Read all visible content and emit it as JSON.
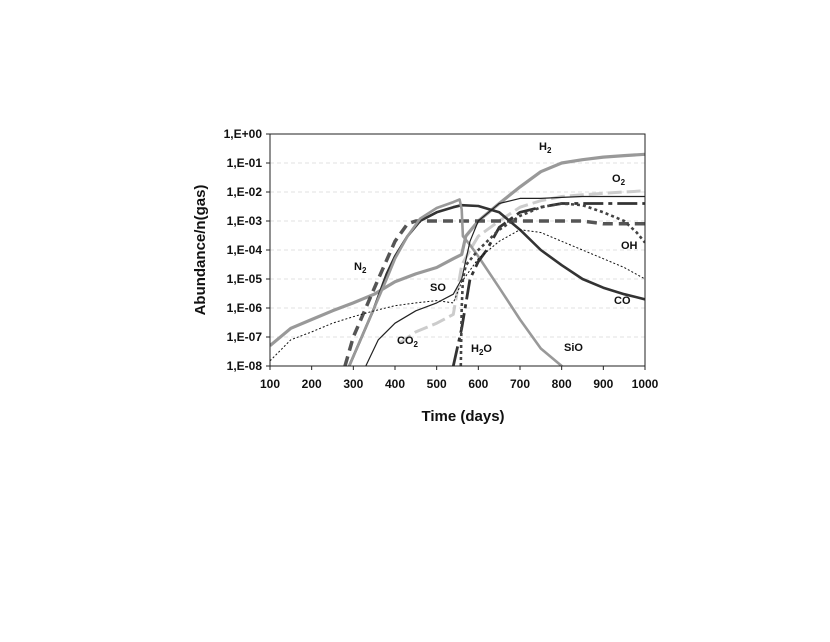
{
  "chart_data": {
    "type": "line",
    "xlabel": "Time (days)",
    "ylabel": "Abundance/n(gas)",
    "xlim": [
      100,
      1000
    ],
    "ylim_log10": [
      -8,
      0
    ],
    "y_scale": "log",
    "x_ticks": [
      "100",
      "200",
      "300",
      "400",
      "500",
      "600",
      "700",
      "800",
      "900",
      "1000"
    ],
    "y_ticks": [
      "1,E-08",
      "1,E-07",
      "1,E-06",
      "1,E-05",
      "1,E-04",
      "1,E-03",
      "1,E-02",
      "1,E-01",
      "1,E+00"
    ],
    "legend": "none (inline labels)",
    "grid": "horizontal dashed",
    "series": [
      {
        "name": "H2",
        "label_base": "H",
        "label_sub": "2",
        "color": "#999999",
        "dash": "",
        "width": 3.2,
        "x": [
          100,
          150,
          200,
          250,
          300,
          350,
          400,
          450,
          500,
          540,
          560,
          570,
          600,
          650,
          700,
          750,
          800,
          850,
          900,
          950,
          1000
        ],
        "y": [
          5e-08,
          2e-07,
          4e-07,
          8e-07,
          1.5e-06,
          3e-06,
          8e-06,
          1.5e-05,
          2.5e-05,
          5e-05,
          7e-05,
          0.0003,
          0.001,
          0.004,
          0.015,
          0.05,
          0.1,
          0.13,
          0.16,
          0.18,
          0.2
        ]
      },
      {
        "name": "O2",
        "label_base": "O",
        "label_sub": "2",
        "color": "#cccccc",
        "dash": "14,5",
        "width": 3,
        "x": [
          410,
          450,
          500,
          540,
          560,
          580,
          600,
          650,
          700,
          750,
          800,
          850,
          900,
          950,
          1000
        ],
        "y": [
          6e-08,
          1.5e-07,
          3e-07,
          6e-07,
          3e-05,
          0.0001,
          0.0003,
          0.001,
          0.003,
          0.005,
          0.007,
          0.008,
          0.009,
          0.01,
          0.011
        ]
      },
      {
        "name": "N2",
        "label_base": "N",
        "label_sub": "2",
        "color": "#555555",
        "dash": "10,6",
        "width": 3.5,
        "x": [
          280,
          300,
          330,
          360,
          400,
          430,
          450,
          500,
          550,
          600,
          650,
          700,
          750,
          800,
          850,
          900,
          950,
          1000
        ],
        "y": [
          1e-08,
          1e-07,
          1e-06,
          1e-05,
          0.0002,
          0.0008,
          0.001,
          0.001,
          0.001,
          0.001,
          0.001,
          0.001,
          0.001,
          0.001,
          0.001,
          0.0008,
          0.0008,
          0.0008
        ]
      },
      {
        "name": "CO",
        "label_base": "CO",
        "label_sub": "",
        "color": "#333333",
        "dash": "",
        "width": 2.6,
        "x": [
          290,
          320,
          350,
          380,
          400,
          430,
          460,
          500,
          540,
          560,
          600,
          650,
          700,
          750,
          800,
          850,
          900,
          950,
          1000
        ],
        "y": [
          1e-08,
          1e-07,
          1e-06,
          1.5e-05,
          6e-05,
          0.0003,
          0.001,
          0.002,
          0.003,
          0.0035,
          0.0033,
          0.002,
          0.0005,
          0.0001,
          3e-05,
          1e-05,
          5e-06,
          3e-06,
          2e-06
        ]
      },
      {
        "name": "SiO",
        "label_base": "SiO",
        "label_sub": "",
        "color": "#999999",
        "dash": "",
        "width": 2.6,
        "x": [
          290,
          320,
          350,
          380,
          400,
          430,
          460,
          500,
          540,
          555,
          560,
          563,
          580,
          600,
          650,
          700,
          750,
          800,
          850,
          880
        ],
        "y": [
          1e-08,
          1e-07,
          1e-06,
          1e-05,
          5e-05,
          0.0003,
          0.0012,
          0.0028,
          0.0045,
          0.0055,
          0.0025,
          0.0003,
          0.00015,
          6e-05,
          5e-06,
          4e-07,
          4e-08,
          1e-08,
          2e-09,
          1e-09
        ]
      },
      {
        "name": "SO",
        "label_base": "SO",
        "label_sub": "",
        "color": "#222222",
        "dash": "",
        "width": 1.2,
        "x": [
          330,
          360,
          400,
          450,
          500,
          540,
          560,
          580,
          600,
          650,
          700,
          750,
          800,
          850,
          900,
          950,
          1000
        ],
        "y": [
          1e-08,
          8e-08,
          3e-07,
          8e-07,
          1.5e-06,
          3e-06,
          1e-05,
          0.0002,
          0.001,
          0.004,
          0.006,
          0.006,
          0.0065,
          0.007,
          0.007,
          0.007,
          0.007
        ]
      },
      {
        "name": "CO2",
        "label_base": "CO",
        "label_sub": "2",
        "color": "#333333",
        "dash": "20,5,4,5",
        "width": 2.8,
        "x": [
          540,
          560,
          580,
          600,
          620,
          650,
          700,
          750,
          800,
          850,
          900,
          950,
          1000
        ],
        "y": [
          1e-08,
          2e-07,
          1e-05,
          4e-05,
          0.0001,
          0.0006,
          0.002,
          0.003,
          0.004,
          0.004,
          0.004,
          0.004,
          0.004
        ]
      },
      {
        "name": "H2O",
        "label_base": "H",
        "label_sub": "2",
        "label_tail": "O",
        "color": "#444444",
        "dash": "3,3",
        "width": 2.6,
        "x": [
          558,
          560,
          563,
          570,
          600,
          650,
          700,
          750,
          800,
          850,
          900,
          950,
          980,
          1000
        ],
        "y": [
          1e-08,
          1e-06,
          1e-05,
          3e-05,
          0.0001,
          0.0005,
          0.0015,
          0.003,
          0.004,
          0.0035,
          0.002,
          0.001,
          0.0004,
          0.00018
        ]
      },
      {
        "name": "OH",
        "label_base": "OH",
        "label_sub": "",
        "color": "#111111",
        "dash": "2,2",
        "width": 1,
        "x": [
          100,
          150,
          200,
          250,
          300,
          350,
          400,
          450,
          500,
          540,
          560,
          600,
          650,
          700,
          750,
          800,
          850,
          900,
          950,
          1000
        ],
        "y": [
          1.5e-08,
          8e-08,
          1.5e-07,
          3e-07,
          5e-07,
          8e-07,
          1.2e-06,
          1.5e-06,
          1.8e-06,
          1.5e-06,
          8e-06,
          5e-05,
          0.0002,
          0.0005,
          0.0004,
          0.0002,
          0.0001,
          5e-05,
          2.5e-05,
          1e-05
        ]
      }
    ]
  }
}
